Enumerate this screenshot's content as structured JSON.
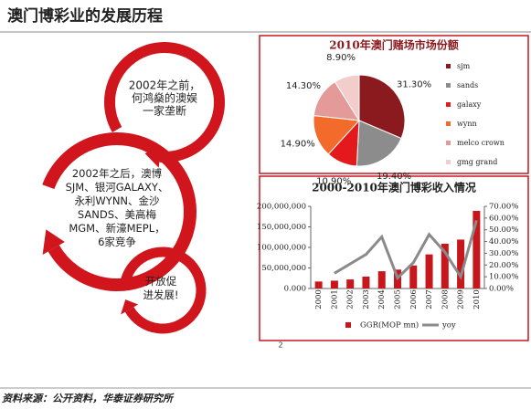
{
  "title": "澳门博彩业的发展历程",
  "diagram": {
    "steps": [
      {
        "lines": [
          "2002年之前，",
          "何鸿燊的澳娱",
          "一家垄断"
        ]
      },
      {
        "lines": [
          "2002年之后，澳博",
          "SJM、银河GALAXY、",
          "永利WYNN、金沙",
          "SANDS、美高梅",
          "MGM、新濠MEPL，",
          "6家竞争"
        ]
      },
      {
        "lines": [
          "开放促",
          "进发展!"
        ]
      }
    ]
  },
  "chart_data": [
    {
      "type": "pie",
      "title": "2010年澳门赌场市场份额",
      "categories": [
        "sjm",
        "sands",
        "galaxy",
        "wynn",
        "melco crown",
        "gmg grand"
      ],
      "values": [
        31.3,
        19.4,
        10.9,
        14.9,
        14.3,
        8.9
      ],
      "value_labels": [
        "31.30%",
        "19.40%",
        "10.90%",
        "14.90%",
        "14.30%",
        "8.90%"
      ],
      "colors": [
        "#8b1a1f",
        "#8c8c8c",
        "#e3191c",
        "#f26b2a",
        "#e59a9a",
        "#f3cccc"
      ],
      "legend": "right"
    },
    {
      "type": "bar",
      "title": "2000-2010年澳门博彩收入情况",
      "categories": [
        "2000",
        "2001",
        "2002",
        "2003",
        "2004",
        "2005",
        "2006",
        "2007",
        "2008",
        "2009",
        "2010"
      ],
      "series": [
        {
          "name": "GGR(MOP mn)",
          "color": "#c8161d",
          "type": "bar",
          "values": [
            17000000,
            19000000,
            22000000,
            29000000,
            42000000,
            46000000,
            56000000,
            83000000,
            109000000,
            119000000,
            189000000
          ]
        },
        {
          "name": "yoy",
          "color": "#8a8a8a",
          "type": "line",
          "axis": "y2",
          "values": [
            null,
            13,
            21,
            29,
            44,
            9,
            22,
            46,
            31,
            10,
            58
          ]
        }
      ],
      "ylim": [
        0,
        200000000
      ],
      "yticks": [
        {
          "value": 0,
          "label": "0.000"
        },
        {
          "value": 50000000,
          "label": "50,000,000"
        },
        {
          "value": 100000000,
          "label": "100,000,000"
        },
        {
          "value": 150000000,
          "label": "150,000,000"
        },
        {
          "value": 200000000,
          "label": "200,000,000"
        }
      ],
      "y2lim": [
        0,
        70
      ],
      "y2ticks": [
        {
          "value": 0,
          "label": "0.00%"
        },
        {
          "value": 10,
          "label": "10.00%"
        },
        {
          "value": 20,
          "label": "20.00%"
        },
        {
          "value": 30,
          "label": "30.00%"
        },
        {
          "value": 40,
          "label": "40.00%"
        },
        {
          "value": 50,
          "label": "50.00%"
        },
        {
          "value": 60,
          "label": "60.00%"
        },
        {
          "value": 70,
          "label": "70.00%"
        }
      ],
      "legend": "bottom"
    }
  ],
  "page_number": "2",
  "source": "资料来源：公开资料，华泰证券研究所"
}
